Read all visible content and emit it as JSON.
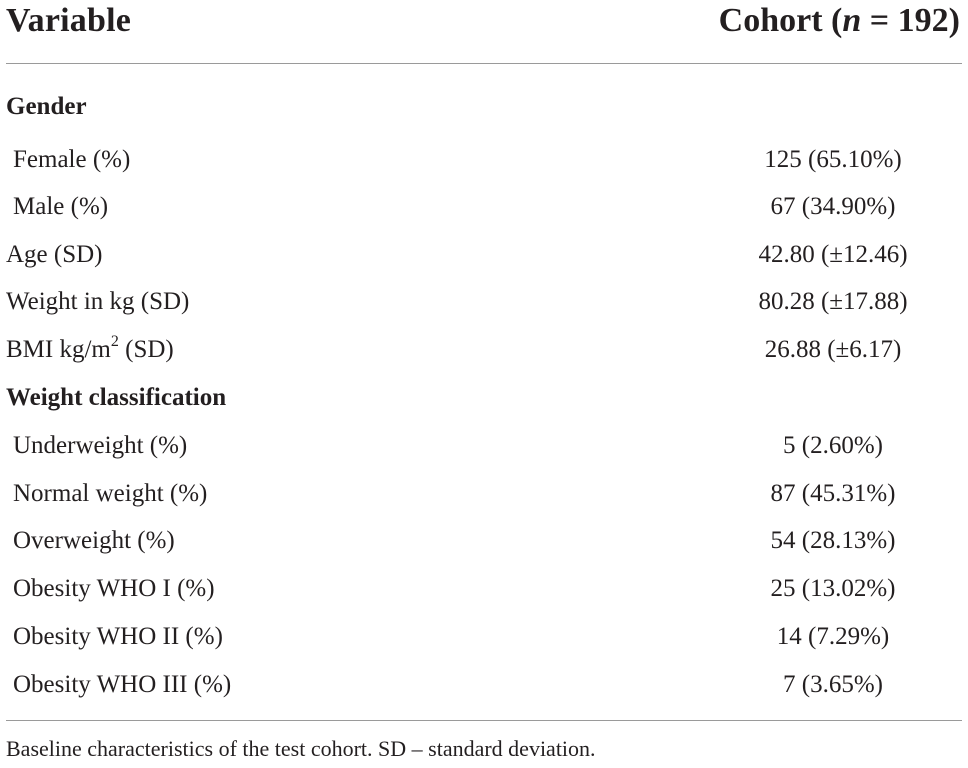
{
  "header": {
    "variable": "Variable",
    "cohort_prefix": "Cohort (",
    "cohort_n": "n",
    "cohort_suffix": " = 192)"
  },
  "rows": [
    {
      "label": "Gender",
      "value": "",
      "kind": "section"
    },
    {
      "label": "Female (%)",
      "value": "125 (65.10%)",
      "kind": "indent"
    },
    {
      "label": "Male (%)",
      "value": "67 (34.90%)",
      "kind": "indent"
    },
    {
      "label": "Age (SD)",
      "value": "42.80 (±12.46)",
      "kind": "plain"
    },
    {
      "label": "Weight in kg (SD)",
      "value": "80.28 (±17.88)",
      "kind": "plain"
    },
    {
      "label_pre": "BMI kg/m",
      "label_sup": "2",
      "label_post": " (SD)",
      "value": "26.88 (±6.17)",
      "kind": "plain"
    },
    {
      "label": "Weight classification",
      "value": "",
      "kind": "section"
    },
    {
      "label": "Underweight (%)",
      "value": "5 (2.60%)",
      "kind": "indent"
    },
    {
      "label": "Normal weight (%)",
      "value": "87 (45.31%)",
      "kind": "indent"
    },
    {
      "label": "Overweight (%)",
      "value": "54 (28.13%)",
      "kind": "indent"
    },
    {
      "label": "Obesity WHO I (%)",
      "value": "25 (13.02%)",
      "kind": "indent"
    },
    {
      "label": "Obesity WHO II (%)",
      "value": "14 (7.29%)",
      "kind": "indent"
    },
    {
      "label": "Obesity WHO III (%)",
      "value": "7 (3.65%)",
      "kind": "indent"
    }
  ],
  "caption": "Baseline characteristics of the test cohort. SD – standard deviation."
}
